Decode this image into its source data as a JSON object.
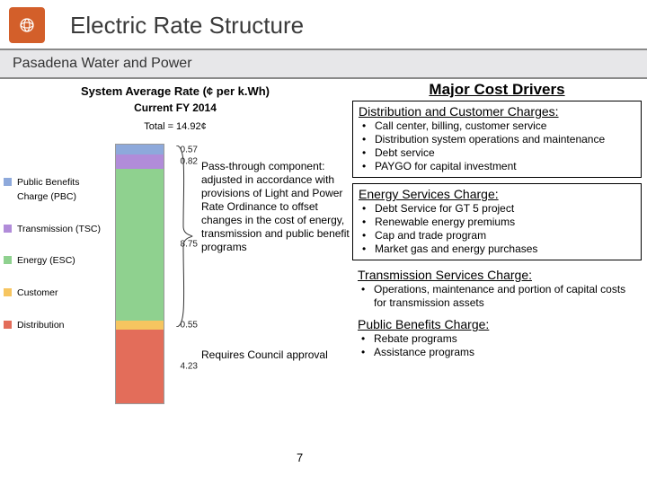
{
  "header": {
    "title": "Electric Rate Structure",
    "org": "Pasadena Water and Power"
  },
  "chart": {
    "title": "System Average Rate (¢ per k.Wh)",
    "fy_label": "Current FY 2014",
    "total_label": "Total = 14.92¢",
    "segments": [
      {
        "label": "0.57",
        "color": "#8ea9db",
        "weight": 0.57
      },
      {
        "label": "0.82",
        "color": "#b18cd9",
        "weight": 0.82
      },
      {
        "label": "8.75",
        "color": "#8fd18f",
        "weight": 8.75
      },
      {
        "label": "0.55",
        "color": "#f6c560",
        "weight": 0.55
      },
      {
        "label": "4.23",
        "color": "#e36d5a",
        "weight": 4.23
      }
    ],
    "legend": [
      {
        "label": "Public Benefits Charge (PBC)",
        "color": "#8ea9db"
      },
      {
        "label": "Transmission (TSC)",
        "color": "#b18cd9"
      },
      {
        "label": "Energy (ESC)",
        "color": "#8fd18f"
      },
      {
        "label": "Customer",
        "color": "#f6c560"
      },
      {
        "label": "Distribution",
        "color": "#e36d5a"
      }
    ],
    "annot1": "Pass-through component: adjusted in accordance with provisions of Light and Power Rate Ordinance to offset changes in the cost of energy, transmission and public benefit programs",
    "annot2": "Requires Council approval"
  },
  "drivers": {
    "title": "Major Cost Drivers",
    "sections": [
      {
        "heading": "Distribution and Customer Charges:",
        "boxed": true,
        "items": [
          "Call center, billing, customer service",
          "Distribution system operations and maintenance",
          "Debt service",
          "PAYGO for capital investment"
        ]
      },
      {
        "heading": "Energy Services Charge:",
        "boxed": true,
        "items": [
          "Debt Service for GT 5 project",
          "Renewable energy premiums",
          "Cap and trade program",
          "Market gas and energy purchases"
        ]
      },
      {
        "heading": "Transmission Services Charge:",
        "boxed": false,
        "items": [
          "Operations, maintenance and portion of capital costs for transmission assets"
        ]
      },
      {
        "heading": "Public Benefits Charge:",
        "boxed": false,
        "items": [
          "Rebate programs",
          "Assistance programs"
        ]
      }
    ]
  },
  "page_number": "7"
}
